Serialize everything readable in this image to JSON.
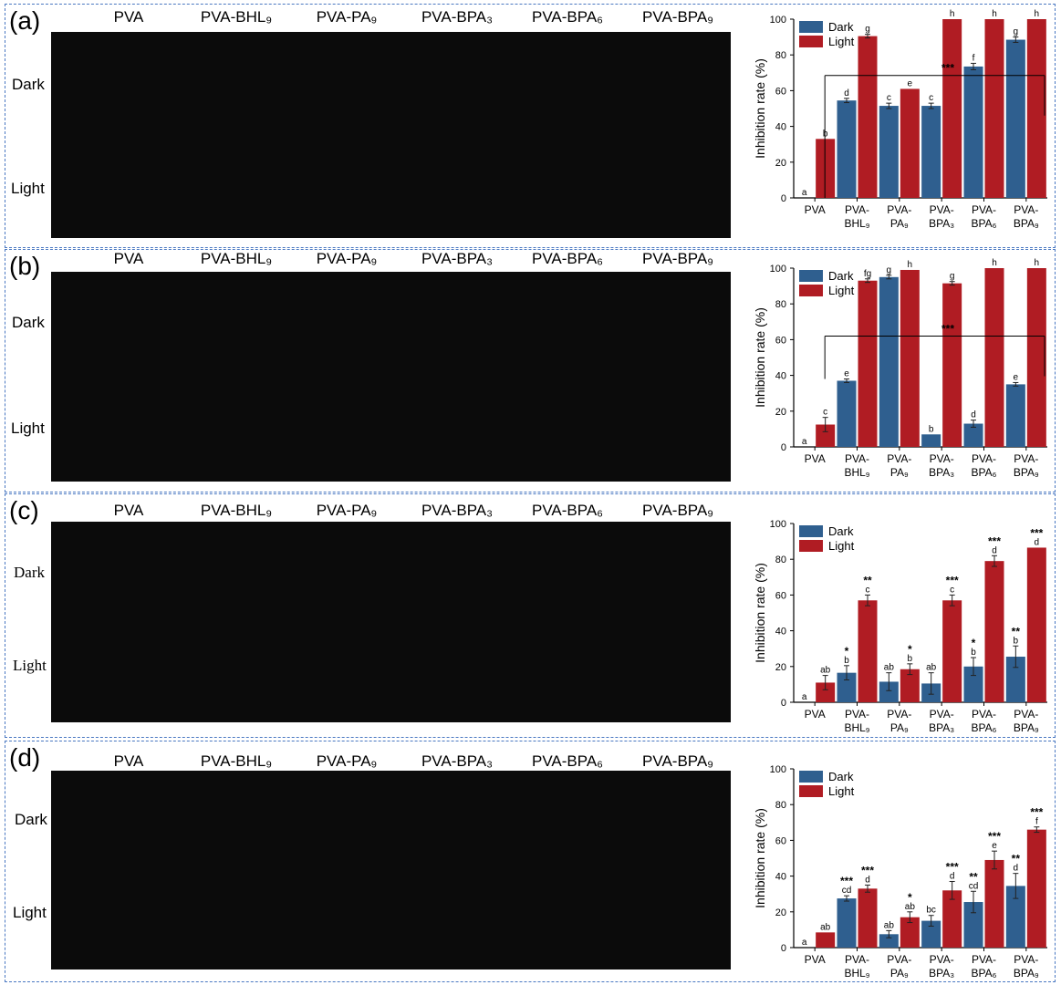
{
  "chart_data": [
    {
      "type": "bar",
      "panel": "(a)",
      "columns": [
        "PVA",
        "PVA-BHL₉",
        "PVA-PA₉",
        "PVA-BPA₃",
        "PVA-BPA₆",
        "PVA-BPA₉"
      ],
      "rows": [
        "Dark",
        "Light"
      ],
      "categories": [
        [
          "PVA"
        ],
        [
          "PVA-",
          "BHL₉"
        ],
        [
          "PVA-",
          "PA₉"
        ],
        [
          "PVA-",
          "BPA₃"
        ],
        [
          "PVA-",
          "BPA₆"
        ],
        [
          "PVA-",
          "BPA₉"
        ]
      ],
      "ylabel": "Inhibition rate (%)",
      "ylim": [
        0,
        100
      ],
      "yticks": [
        0,
        20,
        40,
        60,
        80,
        100
      ],
      "legend": [
        "Dark",
        "Light"
      ],
      "series": [
        {
          "name": "Dark",
          "color": "#2f5f8f",
          "values": [
            0,
            54.5,
            51.5,
            51.5,
            73.5,
            88.5
          ],
          "errors": [
            0,
            1.2,
            1.5,
            1.5,
            1.8,
            1.5
          ],
          "letters": [
            "a",
            "d",
            "c",
            "c",
            "f",
            "g"
          ],
          "stars": [
            "",
            "",
            "",
            "",
            "",
            ""
          ]
        },
        {
          "name": "Light",
          "color": "#b01c23",
          "values": [
            33,
            90.5,
            61,
            100,
            100,
            100
          ],
          "errors": [
            0,
            1,
            0,
            0,
            0,
            0
          ],
          "letters": [
            "b",
            "g",
            "e",
            "h",
            "h",
            "h"
          ],
          "stars": [
            "",
            "",
            "",
            "",
            "",
            ""
          ]
        }
      ],
      "bracket": {
        "label": "***",
        "y": 68.5,
        "y_start": 0
      }
    },
    {
      "type": "bar",
      "panel": "(b)",
      "columns": [
        "PVA",
        "PVA-BHL₉",
        "PVA-PA₉",
        "PVA-BPA₃",
        "PVA-BPA₆",
        "PVA-BPA₉"
      ],
      "rows": [
        "Dark",
        "Light"
      ],
      "categories": [
        [
          "PVA"
        ],
        [
          "PVA-",
          "BHL₉"
        ],
        [
          "PVA-",
          "PA₉"
        ],
        [
          "PVA-",
          "BPA₃"
        ],
        [
          "PVA-",
          "BPA₆"
        ],
        [
          "PVA-",
          "BPA₉"
        ]
      ],
      "ylabel": "Inhibition rate (%)",
      "ylim": [
        0,
        100
      ],
      "yticks": [
        0,
        20,
        40,
        60,
        80,
        100
      ],
      "legend": [
        "Dark",
        "Light"
      ],
      "series": [
        {
          "name": "Dark",
          "color": "#2f5f8f",
          "values": [
            0,
            37,
            95,
            7,
            13,
            35
          ],
          "errors": [
            0,
            1,
            1,
            0,
            2,
            1
          ],
          "letters": [
            "a",
            "e",
            "g",
            "b",
            "d",
            "e"
          ],
          "stars": [
            "",
            "",
            "",
            "",
            "",
            ""
          ]
        },
        {
          "name": "Light",
          "color": "#b01c23",
          "values": [
            12.5,
            93,
            99,
            91.5,
            100,
            100
          ],
          "errors": [
            4,
            1,
            0,
            1,
            0,
            0
          ],
          "letters": [
            "c",
            "fg",
            "h",
            "g",
            "h",
            "h"
          ],
          "stars": [
            "",
            "",
            "",
            "",
            "",
            ""
          ]
        }
      ],
      "bracket": {
        "label": "***",
        "y": 62,
        "y_start": 38
      }
    },
    {
      "type": "bar",
      "panel": "(c)",
      "columns": [
        "PVA",
        "PVA-BHL₉",
        "PVA-PA₉",
        "PVA-BPA₃",
        "PVA-BPA₆",
        "PVA-BPA₉"
      ],
      "rows": [
        "Dark",
        "Light"
      ],
      "categories": [
        [
          "PVA"
        ],
        [
          "PVA-",
          "BHL₉"
        ],
        [
          "PVA-",
          "PA₉"
        ],
        [
          "PVA-",
          "BPA₃"
        ],
        [
          "PVA-",
          "BPA₆"
        ],
        [
          "PVA-",
          "BPA₉"
        ]
      ],
      "ylabel": "Inhibition rate (%)",
      "ylim": [
        0,
        100
      ],
      "yticks": [
        0,
        20,
        40,
        60,
        80,
        100
      ],
      "legend": [
        "Dark",
        "Light"
      ],
      "series": [
        {
          "name": "Dark",
          "color": "#2f5f8f",
          "values": [
            0,
            16.5,
            11.5,
            10.5,
            20,
            25.5
          ],
          "errors": [
            0,
            4,
            5,
            6,
            5,
            6
          ],
          "letters": [
            "a",
            "b",
            "ab",
            "ab",
            "b",
            "b"
          ],
          "stars": [
            "",
            "*",
            "",
            "",
            "*",
            "**"
          ]
        },
        {
          "name": "Light",
          "color": "#b01c23",
          "values": [
            11,
            57,
            18.5,
            57,
            79,
            86.5
          ],
          "errors": [
            4,
            3,
            3,
            3,
            3,
            0
          ],
          "letters": [
            "ab",
            "c",
            "b",
            "c",
            "d",
            "d"
          ],
          "stars": [
            "",
            "**",
            "*",
            "***",
            "***",
            "***"
          ]
        }
      ]
    },
    {
      "type": "bar",
      "panel": "(d)",
      "columns": [
        "PVA",
        "PVA-BHL₉",
        "PVA-PA₉",
        "PVA-BPA₃",
        "PVA-BPA₆",
        "PVA-BPA₉"
      ],
      "rows": [
        "Dark",
        "Light"
      ],
      "categories": [
        [
          "PVA"
        ],
        [
          "PVA-",
          "BHL₉"
        ],
        [
          "PVA-",
          "PA₉"
        ],
        [
          "PVA-",
          "BPA₃"
        ],
        [
          "PVA-",
          "BPA₆"
        ],
        [
          "PVA-",
          "BPA₉"
        ]
      ],
      "ylabel": "Inhibition rate (%)",
      "ylim": [
        0,
        100
      ],
      "yticks": [
        0,
        20,
        40,
        60,
        80,
        100
      ],
      "legend": [
        "Dark",
        "Light"
      ],
      "series": [
        {
          "name": "Dark",
          "color": "#2f5f8f",
          "values": [
            0,
            27.5,
            7.5,
            15,
            25.5,
            34.5
          ],
          "errors": [
            0,
            1.5,
            2,
            3,
            6,
            7
          ],
          "letters": [
            "a",
            "cd",
            "ab",
            "bc",
            "cd",
            "d"
          ],
          "stars": [
            "",
            "***",
            "",
            "",
            "**",
            "**"
          ]
        },
        {
          "name": "Light",
          "color": "#b01c23",
          "values": [
            8.5,
            33,
            17,
            32,
            49,
            66
          ],
          "errors": [
            0,
            2,
            3,
            5,
            5,
            1.5
          ],
          "letters": [
            "ab",
            "d",
            "ab",
            "d",
            "e",
            "f"
          ],
          "stars": [
            "",
            "***",
            "*",
            "***",
            "***",
            "***"
          ]
        }
      ]
    }
  ]
}
